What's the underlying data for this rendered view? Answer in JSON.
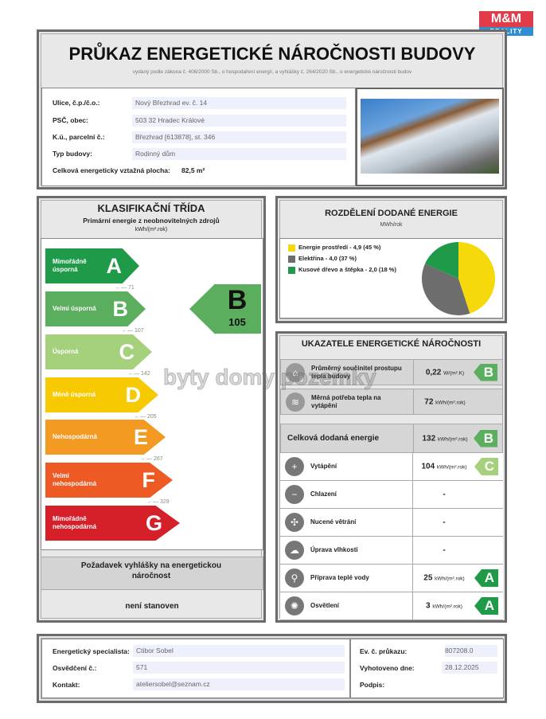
{
  "logo": {
    "brand": "M&M",
    "sub": "REALITY"
  },
  "watermark": "byty domy pozemky",
  "header": {
    "title": "PRŮKAZ ENERGETICKÉ NÁROČNOSTI BUDOVY",
    "subtitle": "vydaný podle zákona č. 406/2000 Sb., o hospodaření energií, a vyhlášky č. 264/2020 Sb., o energetické náročnosti budov"
  },
  "building": {
    "rows": [
      {
        "label": "Ulice, č.p./č.o.:",
        "value": "Nový Březhrad ev. č. 14"
      },
      {
        "label": "PSČ, obec:",
        "value": "503 32 Hradec Králové"
      },
      {
        "label": "K.ú., parcelní č.:",
        "value": "Březhrad [613878], st. 346"
      },
      {
        "label": "Typ budovy:",
        "value": "Rodinný dům"
      }
    ],
    "area_label": "Celková energeticky vztažná plocha:",
    "area_value": "82,5 m²"
  },
  "classification": {
    "title": "KLASIFIKAČNÍ TŘÍDA",
    "subtitle": "Primární energie z neobnovitelných zdrojů",
    "unit": "kWh/(m².rok)",
    "bars": [
      {
        "letter": "A",
        "text": "Mimořádně úsporná",
        "color": "#1f9a48"
      },
      {
        "letter": "B",
        "text": "Velmi úsporná",
        "color": "#5cae5f"
      },
      {
        "letter": "C",
        "text": "Úsporná",
        "color": "#a5d07c"
      },
      {
        "letter": "D",
        "text": "Méně úsporná",
        "color": "#f6c900"
      },
      {
        "letter": "E",
        "text": "Nehospodárná",
        "color": "#f29a22"
      },
      {
        "letter": "F",
        "text": "Velmi nehospodárná",
        "color": "#ee5a24"
      },
      {
        "letter": "G",
        "text": "Mimořádně nehospodárná",
        "color": "#d5202a"
      }
    ],
    "thresholds": [
      "71",
      "107",
      "142",
      "205",
      "267",
      "329"
    ],
    "result": {
      "letter": "B",
      "value": "105",
      "color": "#5cae5f"
    },
    "requirement_title": "Požadavek vyhlášky na energetickou náročnost",
    "requirement_value": "není stanoven"
  },
  "distribution": {
    "title": "ROZDĚLENÍ DODANÉ ENERGIE",
    "unit": "MWh/rok",
    "chart_data": {
      "type": "pie",
      "series": [
        {
          "name": "Energie prostředí - 4,9 (45 %)",
          "value": 4.9,
          "percent": 45,
          "color": "#f5d90a"
        },
        {
          "name": "Elektřina - 4,0 (37 %)",
          "value": 4.0,
          "percent": 37,
          "color": "#6d6d6d"
        },
        {
          "name": "Kusové dřevo a štěpka - 2,0 (18 %)",
          "value": 2.0,
          "percent": 18,
          "color": "#1f9a48"
        }
      ]
    }
  },
  "indicators": {
    "title": "UKAZATELE ENERGETICKÉ NÁROČNOSTI",
    "rows": [
      {
        "name": "Průměrný součinitel prostupu tepla budovy",
        "value": "0,22",
        "unit": "W/(m².K)",
        "class": "B",
        "color": "#5cae5f",
        "icon": "house-icon"
      },
      {
        "name": "Měrná potřeba tepla na vytápění",
        "value": "72",
        "unit": "kWh/(m².rok)",
        "class": "",
        "icon": "heat-icon"
      },
      {
        "name": "Celková dodaná energie",
        "value": "132",
        "unit": "kWh/(m².rok)",
        "class": "B",
        "color": "#5cae5f",
        "icon": ""
      },
      {
        "name": "Vytápění",
        "value": "104",
        "unit": "kWh/(m².rok)",
        "class": "C",
        "color": "#a5d07c",
        "icon": "thermometer-plus-icon"
      },
      {
        "name": "Chlazení",
        "value": "-",
        "unit": "",
        "class": "",
        "icon": "thermometer-minus-icon"
      },
      {
        "name": "Nucené větrání",
        "value": "-",
        "unit": "",
        "class": "",
        "icon": "fan-icon"
      },
      {
        "name": "Úprava vlhkosti",
        "value": "-",
        "unit": "",
        "class": "",
        "icon": "humidity-icon"
      },
      {
        "name": "Příprava teplé vody",
        "value": "25",
        "unit": "kWh/(m².rok)",
        "class": "A",
        "color": "#1f9a48",
        "icon": "faucet-icon"
      },
      {
        "name": "Osvětlení",
        "value": "3",
        "unit": "kWh/(m².rok)",
        "class": "A",
        "color": "#1f9a48",
        "icon": "bulb-icon"
      }
    ]
  },
  "footer": {
    "specialist_label": "Energetický specialista:",
    "specialist": "Ctibor Sobel",
    "cert_label": "Osvědčení č.:",
    "cert": "571",
    "contact_label": "Kontakt:",
    "contact": "ateliersobel@seznam.cz",
    "ev_label": "Ev. č. průkazu:",
    "ev": "807208.0",
    "date_label": "Vyhotoveno dne:",
    "date": "28.12.2025",
    "sign_label": "Podpis:"
  }
}
